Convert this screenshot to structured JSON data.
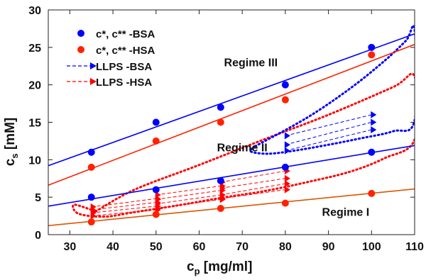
{
  "chart_data": {
    "type": "scatter",
    "xlabel_main": "c",
    "xlabel_sub": "p",
    "xlabel_unit": " [mg/ml]",
    "ylabel_main": "c",
    "ylabel_sub": "s",
    "ylabel_unit": " [mM]",
    "xlim": [
      25,
      110
    ],
    "ylim": [
      0,
      30
    ],
    "xticks": [
      30,
      40,
      50,
      60,
      70,
      80,
      90,
      100,
      110
    ],
    "yticks": [
      0,
      5,
      10,
      15,
      20,
      25,
      30
    ],
    "grid": false,
    "legend_position": "top-left",
    "series": [
      {
        "name": "c*, c** -BSA",
        "kind": "points",
        "color": "#0000ff",
        "x": [
          35,
          50,
          65,
          80,
          100,
          35,
          50,
          65,
          80,
          100
        ],
        "y": [
          11,
          15,
          17,
          20,
          25,
          5,
          6,
          7.2,
          9,
          11
        ]
      },
      {
        "name": "c*, c** -HSA",
        "kind": "points",
        "color": "#ff2200",
        "x": [
          35,
          50,
          65,
          80,
          100,
          35,
          50,
          65,
          80,
          100
        ],
        "y": [
          9,
          12.5,
          15,
          18,
          24,
          1.7,
          2.7,
          3.5,
          4.2,
          5.5
        ]
      },
      {
        "name": "LLPS  -BSA",
        "kind": "arrows",
        "color": "#0000ff",
        "segments": [
          {
            "x": [
              80,
              100
            ],
            "y": [
              13.2,
              16
            ]
          },
          {
            "x": [
              80,
              100
            ],
            "y": [
              12,
              15
            ]
          },
          {
            "x": [
              80,
              100
            ],
            "y": [
              11.2,
              14
            ]
          }
        ]
      },
      {
        "name": "LLPS  -HSA",
        "kind": "arrows",
        "color": "#ff0000",
        "segments": [
          {
            "x": [
              35,
              50
            ],
            "y": [
              3.7,
              4.8
            ]
          },
          {
            "x": [
              35,
              50
            ],
            "y": [
              3.3,
              4.3
            ]
          },
          {
            "x": [
              35,
              50
            ],
            "y": [
              2.9,
              3.8
            ]
          },
          {
            "x": [
              35,
              50
            ],
            "y": [
              2.5,
              3.3
            ]
          },
          {
            "x": [
              50,
              65
            ],
            "y": [
              5.3,
              6.5
            ]
          },
          {
            "x": [
              50,
              65
            ],
            "y": [
              4.7,
              5.9
            ]
          },
          {
            "x": [
              50,
              65
            ],
            "y": [
              4.1,
              5.3
            ]
          },
          {
            "x": [
              50,
              65
            ],
            "y": [
              3.5,
              4.7
            ]
          },
          {
            "x": [
              65,
              80
            ],
            "y": [
              7,
              8.5
            ]
          },
          {
            "x": [
              65,
              80
            ],
            "y": [
              6.2,
              7.5
            ]
          },
          {
            "x": [
              65,
              80
            ],
            "y": [
              5.3,
              6.8
            ]
          },
          {
            "x": [
              65,
              80
            ],
            "y": [
              4.8,
              6
            ]
          }
        ]
      }
    ],
    "fit_lines": [
      {
        "color": "#0000ff",
        "x": [
          25,
          110
        ],
        "y": [
          9.2,
          26.8
        ]
      },
      {
        "color": "#ff2200",
        "x": [
          25,
          110
        ],
        "y": [
          6.6,
          25.4
        ]
      },
      {
        "color": "#0000ff",
        "x": [
          25,
          110
        ],
        "y": [
          3.8,
          11.9
        ]
      },
      {
        "color": "#dd5500",
        "x": [
          25,
          110
        ],
        "y": [
          1.2,
          6.1
        ]
      }
    ],
    "regions": [
      {
        "color": "#ff0000",
        "points": [
          [
            36,
            3.1
          ],
          [
            45,
            6.0
          ],
          [
            60,
            9.3
          ],
          [
            75,
            12.7
          ],
          [
            90,
            16.0
          ],
          [
            105,
            19.7
          ],
          [
            110,
            21.1
          ],
          [
            110,
            12.7
          ],
          [
            103,
            10.2
          ],
          [
            95,
            8.4
          ],
          [
            85,
            7.0
          ],
          [
            75,
            5.8
          ],
          [
            65,
            4.9
          ],
          [
            55,
            3.9
          ],
          [
            45,
            3.0
          ],
          [
            38,
            2.4
          ],
          [
            32,
            2.8
          ],
          [
            31,
            4.0
          ],
          [
            36,
            3.1
          ]
        ]
      },
      {
        "color": "#0000ff",
        "points": [
          [
            73,
            11.8
          ],
          [
            85,
            15.6
          ],
          [
            95,
            19.5
          ],
          [
            103,
            23.2
          ],
          [
            108,
            25.9
          ],
          [
            110,
            27.3
          ],
          [
            110,
            15.3
          ],
          [
            105,
            13.8
          ],
          [
            97,
            12.8
          ],
          [
            90,
            12.0
          ],
          [
            82,
            11.2
          ],
          [
            76,
            10.8
          ],
          [
            72,
            11.1
          ],
          [
            73,
            11.8
          ]
        ]
      }
    ],
    "annotations": [
      {
        "text": "Regime III",
        "x": 72,
        "y": 22.5
      },
      {
        "text": "Regime II",
        "x": 70,
        "y": 11.1
      },
      {
        "text": "Regime I",
        "x": 94,
        "y": 2.5
      }
    ]
  }
}
